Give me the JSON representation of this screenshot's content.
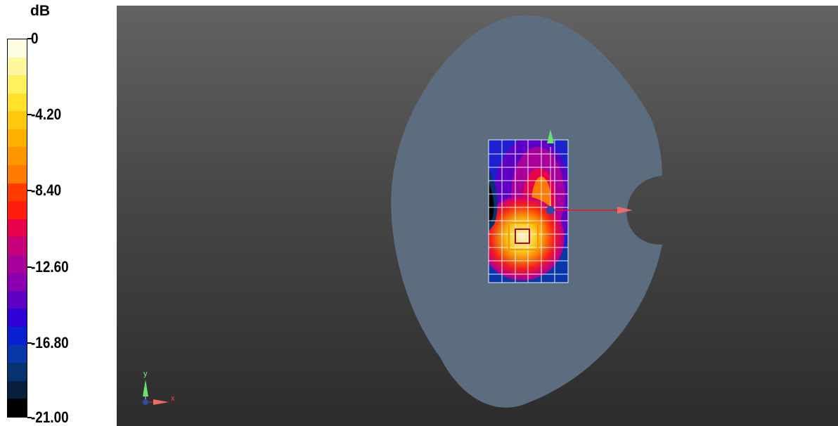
{
  "legend": {
    "unit": "dB",
    "ticks": [
      "0",
      "-4.20",
      "-8.40",
      "-12.60",
      "-16.80",
      "-21.00"
    ],
    "range": [
      -21.0,
      0.0
    ],
    "colors": [
      "#fffde0",
      "#fff79e",
      "#fff060",
      "#ffe12a",
      "#ffc80b",
      "#ffb100",
      "#ff9600",
      "#ff7a00",
      "#ff3b00",
      "#ff1d10",
      "#e8004a",
      "#c8007a",
      "#a7009b",
      "#8a00ad",
      "#5d00c4",
      "#2f00d6",
      "#0a1fd0",
      "#0737a8",
      "#06326f",
      "#071f3e",
      "#000000"
    ],
    "color_accent": "#ffffff"
  },
  "viewport": {
    "background_top": "#626262",
    "background_bottom": "#2c2c2c",
    "body_color": "#5d6d80",
    "axis_triad": {
      "x_label": "x",
      "y_label": "y"
    }
  }
}
